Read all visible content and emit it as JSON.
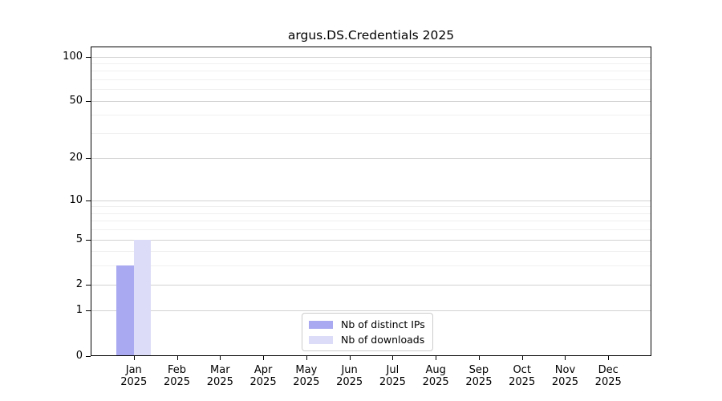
{
  "chart_data": {
    "type": "bar",
    "title": "argus.DS.Credentials 2025",
    "categories": [
      "Jan",
      "Feb",
      "Mar",
      "Apr",
      "May",
      "Jun",
      "Jul",
      "Aug",
      "Sep",
      "Oct",
      "Nov",
      "Dec"
    ],
    "category_year": "2025",
    "series": [
      {
        "name": "Nb of distinct IPs",
        "color": "#a9a9f1",
        "values": [
          3,
          0,
          0,
          0,
          0,
          0,
          0,
          0,
          0,
          0,
          0,
          0
        ]
      },
      {
        "name": "Nb of downloads",
        "color": "#dcdcf8",
        "values": [
          5,
          0,
          0,
          0,
          0,
          0,
          0,
          0,
          0,
          0,
          0,
          0
        ]
      }
    ],
    "y_axis": {
      "scale": "log1p",
      "ticks": [
        0,
        1,
        2,
        5,
        10,
        20,
        50,
        100
      ],
      "minor_ticks": [
        3,
        4,
        6,
        7,
        8,
        9,
        30,
        40,
        60,
        70,
        80,
        90
      ],
      "ylim": [
        0,
        117
      ]
    },
    "xlabel": "",
    "ylabel": "",
    "grid": "horizontal",
    "legend_position": "lower center",
    "colors": {
      "major_grid": "#d2d2d2",
      "minor_grid": "#f0f0f0",
      "axis": "#000000",
      "background": "#ffffff"
    }
  }
}
